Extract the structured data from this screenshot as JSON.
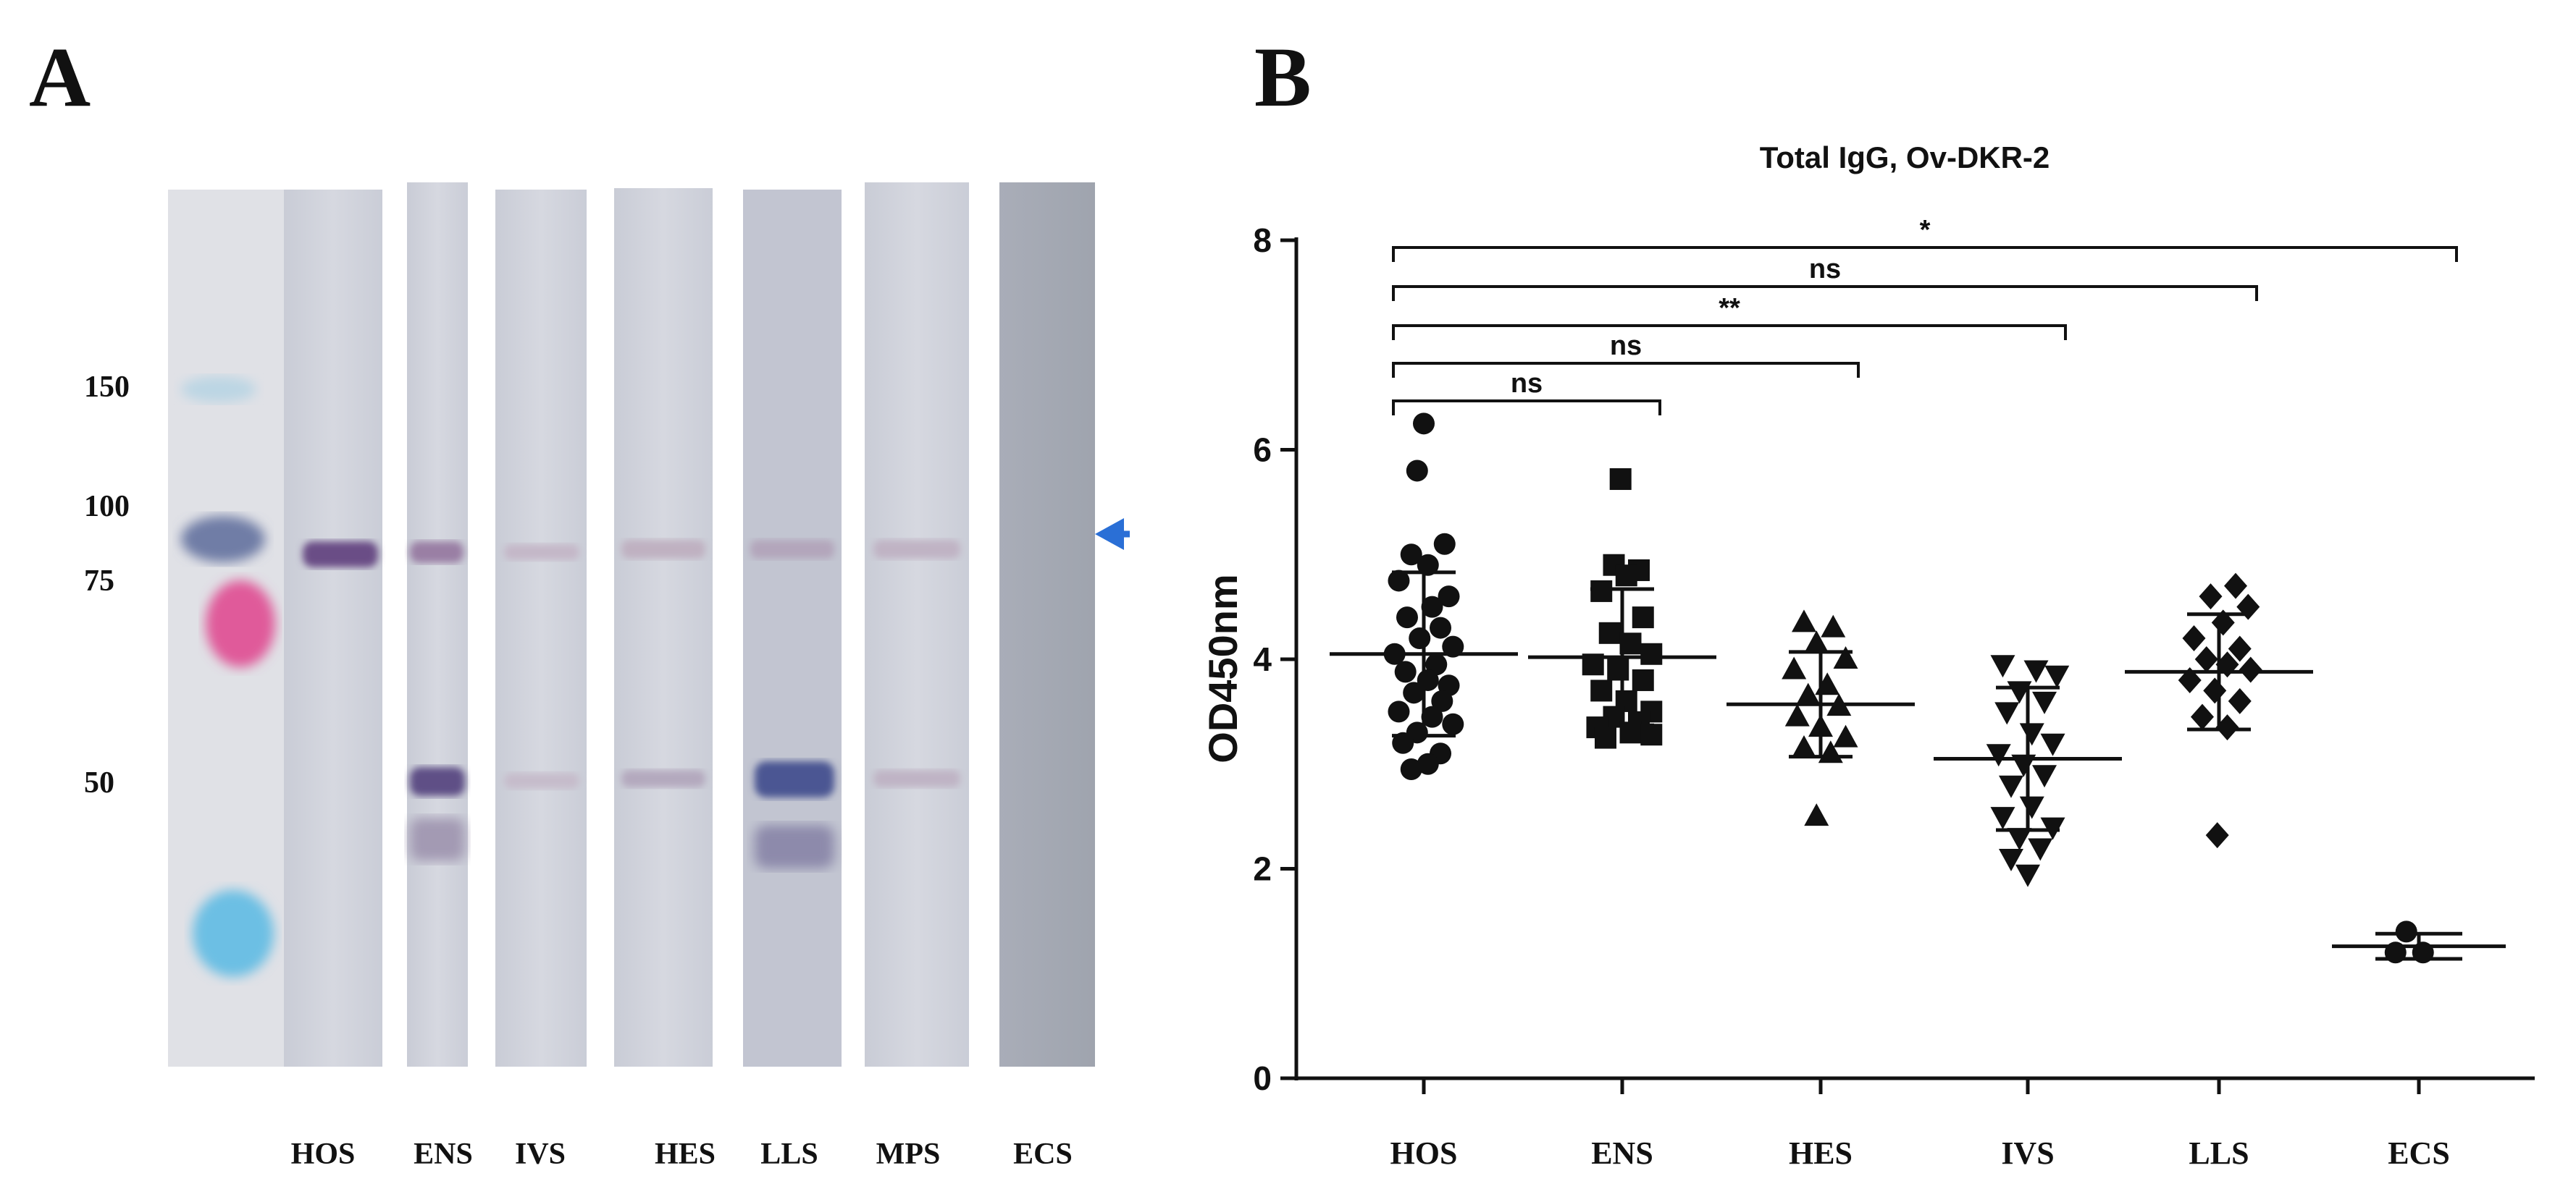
{
  "panels": {
    "a_label": "A",
    "b_label": "B"
  },
  "western_blot": {
    "markers": [
      "150",
      "100",
      "75",
      "50"
    ],
    "lanes": [
      "HOS",
      "ENS",
      "IVS",
      "HES",
      "LLS",
      "MPS",
      "ECS"
    ],
    "arrow_color": "#2a6fd6"
  },
  "chart_data": {
    "type": "scatter",
    "title": "Total IgG, Ov-DKR-2",
    "xlabel": "",
    "ylabel": "OD450nm",
    "ylim": [
      0,
      8
    ],
    "yticks": [
      "0",
      "2",
      "4",
      "6",
      "8"
    ],
    "categories": [
      "HOS",
      "ENS",
      "HES",
      "IVS",
      "LLS",
      "ECS"
    ],
    "markers": [
      "circle",
      "square",
      "triangle-up",
      "triangle-down",
      "diamond",
      "circle"
    ],
    "series": [
      {
        "name": "HOS",
        "mean": 4.05,
        "sd": 0.78,
        "points": [
          {
            "y": 6.25,
            "j": 0.0
          },
          {
            "y": 5.8,
            "j": -0.08
          },
          {
            "y": 5.1,
            "j": 0.25
          },
          {
            "y": 5.0,
            "j": -0.15
          },
          {
            "y": 4.9,
            "j": 0.05
          },
          {
            "y": 4.75,
            "j": -0.3
          },
          {
            "y": 4.6,
            "j": 0.3
          },
          {
            "y": 4.5,
            "j": 0.1
          },
          {
            "y": 4.4,
            "j": -0.2
          },
          {
            "y": 4.3,
            "j": 0.2
          },
          {
            "y": 4.2,
            "j": -0.05
          },
          {
            "y": 4.12,
            "j": 0.35
          },
          {
            "y": 4.05,
            "j": -0.35
          },
          {
            "y": 3.95,
            "j": 0.15
          },
          {
            "y": 3.88,
            "j": -0.22
          },
          {
            "y": 3.8,
            "j": 0.05
          },
          {
            "y": 3.75,
            "j": 0.3
          },
          {
            "y": 3.68,
            "j": -0.12
          },
          {
            "y": 3.6,
            "j": 0.22
          },
          {
            "y": 3.5,
            "j": -0.3
          },
          {
            "y": 3.45,
            "j": 0.1
          },
          {
            "y": 3.38,
            "j": 0.35
          },
          {
            "y": 3.3,
            "j": -0.08
          },
          {
            "y": 3.2,
            "j": -0.25
          },
          {
            "y": 3.1,
            "j": 0.2
          },
          {
            "y": 3.0,
            "j": 0.05
          },
          {
            "y": 2.95,
            "j": -0.15
          }
        ]
      },
      {
        "name": "ENS",
        "mean": 4.02,
        "sd": 0.65,
        "points": [
          {
            "y": 5.72,
            "j": -0.02
          },
          {
            "y": 4.9,
            "j": -0.1
          },
          {
            "y": 4.85,
            "j": 0.2
          },
          {
            "y": 4.8,
            "j": 0.05
          },
          {
            "y": 4.65,
            "j": -0.25
          },
          {
            "y": 4.4,
            "j": 0.25
          },
          {
            "y": 4.25,
            "j": -0.15
          },
          {
            "y": 4.15,
            "j": 0.1
          },
          {
            "y": 4.05,
            "j": 0.35
          },
          {
            "y": 3.95,
            "j": -0.35
          },
          {
            "y": 3.9,
            "j": -0.05
          },
          {
            "y": 3.8,
            "j": 0.25
          },
          {
            "y": 3.7,
            "j": -0.25
          },
          {
            "y": 3.6,
            "j": 0.05
          },
          {
            "y": 3.5,
            "j": 0.35
          },
          {
            "y": 3.45,
            "j": -0.1
          },
          {
            "y": 3.4,
            "j": 0.2
          },
          {
            "y": 3.35,
            "j": -0.3
          },
          {
            "y": 3.3,
            "j": 0.1
          },
          {
            "y": 3.28,
            "j": 0.35
          },
          {
            "y": 3.25,
            "j": -0.2
          }
        ]
      },
      {
        "name": "HES",
        "mean": 3.57,
        "sd": 0.5,
        "points": [
          {
            "y": 4.35,
            "j": -0.2
          },
          {
            "y": 4.3,
            "j": 0.15
          },
          {
            "y": 4.15,
            "j": -0.05
          },
          {
            "y": 4.0,
            "j": 0.3
          },
          {
            "y": 3.9,
            "j": -0.32
          },
          {
            "y": 3.75,
            "j": 0.08
          },
          {
            "y": 3.65,
            "j": -0.15
          },
          {
            "y": 3.55,
            "j": 0.22
          },
          {
            "y": 3.45,
            "j": -0.28
          },
          {
            "y": 3.35,
            "j": 0.0
          },
          {
            "y": 3.25,
            "j": 0.3
          },
          {
            "y": 3.15,
            "j": -0.2
          },
          {
            "y": 3.1,
            "j": 0.12
          },
          {
            "y": 2.5,
            "j": -0.05
          }
        ]
      },
      {
        "name": "IVS",
        "mean": 3.05,
        "sd": 0.68,
        "points": [
          {
            "y": 3.95,
            "j": -0.3
          },
          {
            "y": 3.9,
            "j": 0.1
          },
          {
            "y": 3.85,
            "j": 0.35
          },
          {
            "y": 3.7,
            "j": -0.1
          },
          {
            "y": 3.6,
            "j": 0.2
          },
          {
            "y": 3.5,
            "j": -0.25
          },
          {
            "y": 3.3,
            "j": 0.05
          },
          {
            "y": 3.2,
            "j": 0.3
          },
          {
            "y": 3.1,
            "j": -0.35
          },
          {
            "y": 3.0,
            "j": -0.05
          },
          {
            "y": 2.9,
            "j": 0.2
          },
          {
            "y": 2.8,
            "j": -0.2
          },
          {
            "y": 2.6,
            "j": 0.05
          },
          {
            "y": 2.5,
            "j": -0.3
          },
          {
            "y": 2.4,
            "j": 0.3
          },
          {
            "y": 2.3,
            "j": -0.1
          },
          {
            "y": 2.2,
            "j": 0.15
          },
          {
            "y": 2.1,
            "j": -0.2
          },
          {
            "y": 1.95,
            "j": 0.0
          }
        ]
      },
      {
        "name": "LLS",
        "mean": 3.88,
        "sd": 0.55,
        "points": [
          {
            "y": 4.7,
            "j": 0.2
          },
          {
            "y": 4.6,
            "j": -0.1
          },
          {
            "y": 4.5,
            "j": 0.35
          },
          {
            "y": 4.35,
            "j": 0.05
          },
          {
            "y": 4.2,
            "j": -0.3
          },
          {
            "y": 4.1,
            "j": 0.25
          },
          {
            "y": 4.0,
            "j": -0.15
          },
          {
            "y": 3.95,
            "j": 0.1
          },
          {
            "y": 3.9,
            "j": 0.38
          },
          {
            "y": 3.8,
            "j": -0.35
          },
          {
            "y": 3.7,
            "j": -0.05
          },
          {
            "y": 3.6,
            "j": 0.25
          },
          {
            "y": 3.45,
            "j": -0.2
          },
          {
            "y": 3.35,
            "j": 0.1
          },
          {
            "y": 2.32,
            "j": -0.02
          }
        ]
      },
      {
        "name": "ECS",
        "mean": 1.26,
        "sd": 0.12,
        "points": [
          {
            "y": 1.4,
            "j": -0.15
          },
          {
            "y": 1.2,
            "j": -0.28
          },
          {
            "y": 1.2,
            "j": 0.05
          }
        ]
      }
    ],
    "significance": [
      {
        "from": "HOS",
        "to": "ENS",
        "label": "ns"
      },
      {
        "from": "HOS",
        "to": "HES",
        "label": "ns"
      },
      {
        "from": "HOS",
        "to": "IVS",
        "label": "**"
      },
      {
        "from": "HOS",
        "to": "LLS",
        "label": "ns"
      },
      {
        "from": "HOS",
        "to": "ECS",
        "label": "*"
      }
    ]
  }
}
